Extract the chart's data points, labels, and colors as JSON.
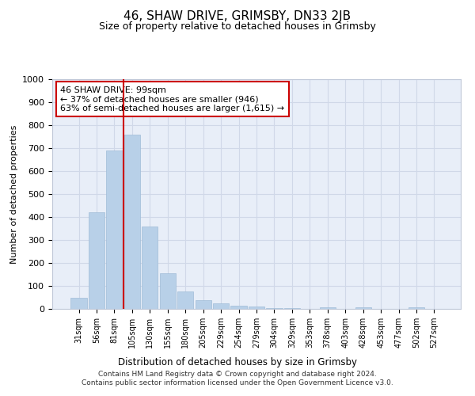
{
  "title": "46, SHAW DRIVE, GRIMSBY, DN33 2JB",
  "subtitle": "Size of property relative to detached houses in Grimsby",
  "xlabel": "Distribution of detached houses by size in Grimsby",
  "ylabel": "Number of detached properties",
  "categories": [
    "31sqm",
    "56sqm",
    "81sqm",
    "105sqm",
    "130sqm",
    "155sqm",
    "180sqm",
    "205sqm",
    "229sqm",
    "254sqm",
    "279sqm",
    "304sqm",
    "329sqm",
    "353sqm",
    "378sqm",
    "403sqm",
    "428sqm",
    "453sqm",
    "477sqm",
    "502sqm",
    "527sqm"
  ],
  "values": [
    48,
    420,
    690,
    760,
    360,
    155,
    75,
    38,
    25,
    15,
    10,
    5,
    5,
    0,
    8,
    0,
    8,
    0,
    0,
    8,
    0
  ],
  "bar_color": "#b8d0e8",
  "bar_edge_color": "#a0bcd8",
  "vline_x_index": 2.5,
  "vline_color": "#cc0000",
  "annotation_text": "46 SHAW DRIVE: 99sqm\n← 37% of detached houses are smaller (946)\n63% of semi-detached houses are larger (1,615) →",
  "annotation_box_color": "#ffffff",
  "annotation_box_edge_color": "#cc0000",
  "ylim": [
    0,
    1000
  ],
  "yticks": [
    0,
    100,
    200,
    300,
    400,
    500,
    600,
    700,
    800,
    900,
    1000
  ],
  "grid_color": "#d0d8e8",
  "bg_color": "#e8eef8",
  "footer_line1": "Contains HM Land Registry data © Crown copyright and database right 2024.",
  "footer_line2": "Contains public sector information licensed under the Open Government Licence v3.0."
}
